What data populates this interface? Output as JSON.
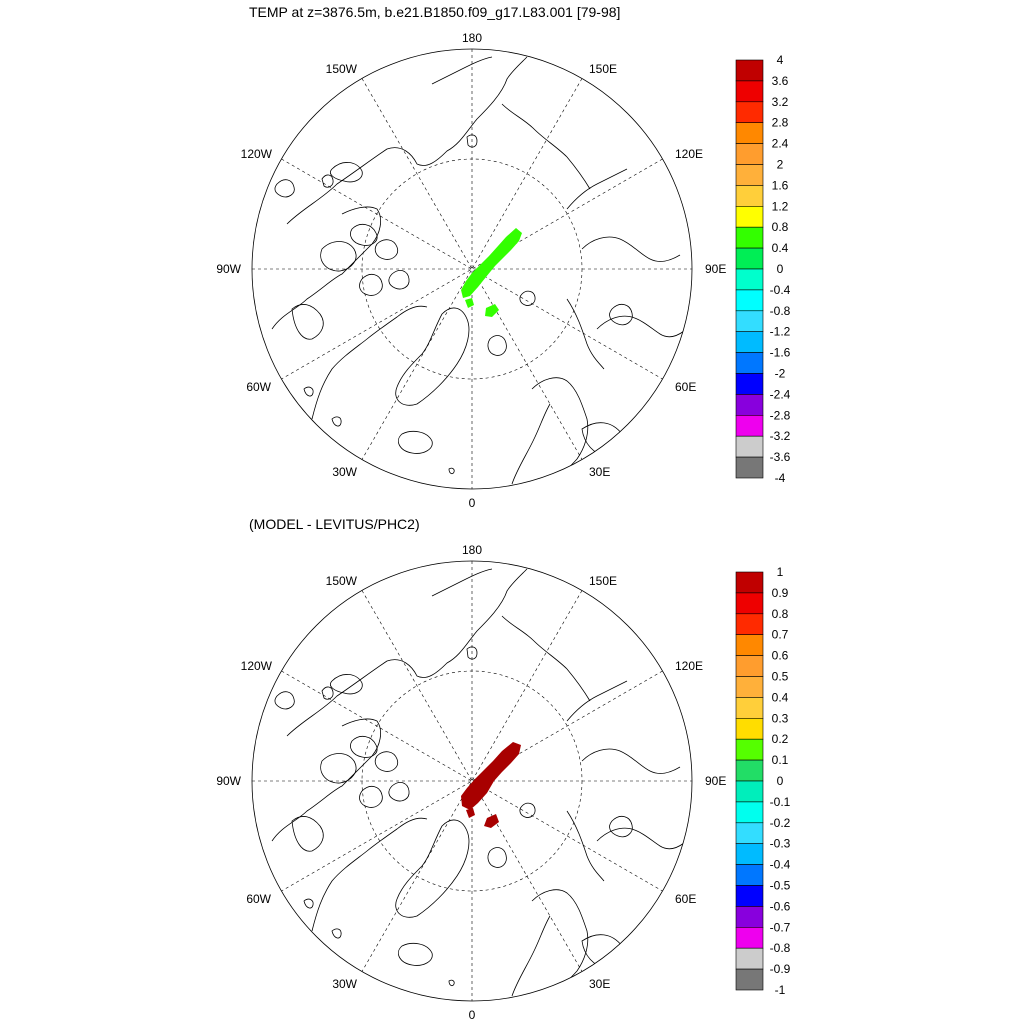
{
  "panels": [
    {
      "title": "TEMP at z=3876.5m, b.e21.B1850.f09_g17.L83.001 [79-98]",
      "anomaly_color": "#33ff00",
      "colorbar": {
        "colors": [
          "#c00000",
          "#ee0000",
          "#ff2a00",
          "#ff8800",
          "#ff9d2e",
          "#ffb03a",
          "#ffcf3a",
          "#ffff00",
          "#33ff00",
          "#00ee55",
          "#00ffcc",
          "#00ffff",
          "#33ddff",
          "#00bbff",
          "#0077ff",
          "#0000ff",
          "#8800dd",
          "#ee00ee",
          "#cccccc",
          "#777777"
        ],
        "labels": [
          "4",
          "3.6",
          "3.2",
          "2.8",
          "2.4",
          "2",
          "1.6",
          "1.2",
          "0.8",
          "0.4",
          "0",
          "-0.4",
          "-0.8",
          "-1.2",
          "-1.6",
          "-2",
          "-2.4",
          "-2.8",
          "-3.2",
          "-3.6",
          "-4"
        ]
      }
    },
    {
      "title": "(MODEL - LEVITUS/PHC2)",
      "anomaly_color": "#a80000",
      "colorbar": {
        "colors": [
          "#c00000",
          "#ee0000",
          "#ff2a00",
          "#ff8800",
          "#ff9d2e",
          "#ffb03a",
          "#ffcf3a",
          "#ffdd00",
          "#55ff00",
          "#22dd66",
          "#00eebb",
          "#00ffee",
          "#33ddff",
          "#00bbff",
          "#0077ff",
          "#0000ff",
          "#8800dd",
          "#ee00ee",
          "#cccccc",
          "#777777"
        ],
        "labels": [
          "1",
          "0.9",
          "0.8",
          "0.7",
          "0.6",
          "0.5",
          "0.4",
          "0.3",
          "0.2",
          "0.1",
          "0",
          "-0.1",
          "-0.2",
          "-0.3",
          "-0.4",
          "-0.5",
          "-0.6",
          "-0.7",
          "-0.8",
          "-0.9",
          "-1"
        ]
      }
    }
  ],
  "longitude_labels": {
    "top": "180",
    "bottom": "0",
    "left": "90W",
    "right": "90E",
    "upper_left": "150W",
    "upper_right": "150E",
    "mid_upper_left": "120W",
    "mid_upper_right": "120E",
    "mid_lower_left": "60W",
    "mid_lower_right": "60E",
    "lower_left": "30W",
    "lower_right": "30E"
  }
}
